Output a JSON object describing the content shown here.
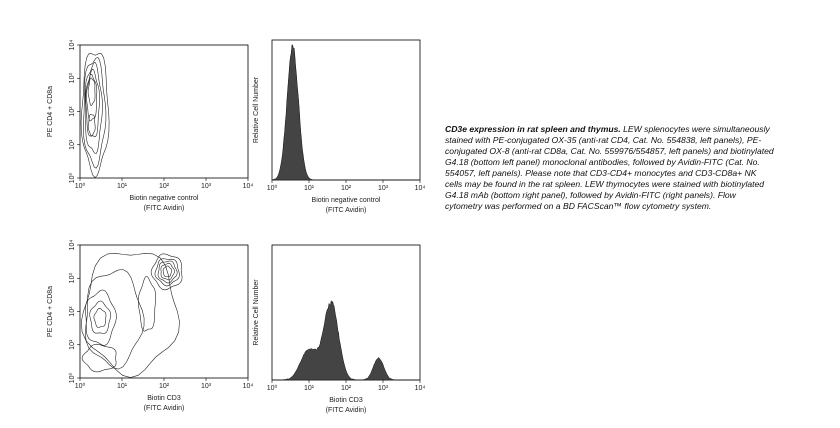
{
  "panels": [
    {
      "kind": "contour",
      "y_label": "PE CD4 + CD8a",
      "x_label": [
        "Biotin negative control",
        "(FITC Avidin)"
      ],
      "x_ticks": [
        "10⁰",
        "10¹",
        "10²",
        "10³",
        "10⁴"
      ],
      "y_ticks": [
        "10⁰",
        "10¹",
        "10²",
        "10³",
        "10⁴"
      ]
    },
    {
      "kind": "histogram",
      "y_label": "Relative Cell Number",
      "x_label": [
        "Biotin negative control",
        "(FITC Avidin)"
      ],
      "x_ticks": [
        "10⁰",
        "10¹",
        "10²",
        "10³",
        "10⁴"
      ]
    },
    {
      "kind": "contour",
      "y_label": "PE CD4 + CD8a",
      "x_label": [
        "Biotin CD3",
        "(FITC Avidin)"
      ],
      "x_ticks": [
        "10⁰",
        "10¹",
        "10²",
        "10³",
        "10⁴"
      ],
      "y_ticks": [
        "10⁰",
        "10¹",
        "10²",
        "10³",
        "10⁴"
      ]
    },
    {
      "kind": "histogram",
      "y_label": "Relative Cell Number",
      "x_label": [
        "Biotin CD3",
        "(FITC Avidin)"
      ],
      "x_ticks": [
        "10⁰",
        "10¹",
        "10²",
        "10³",
        "10⁴"
      ]
    }
  ],
  "caption": {
    "title": "CD3e expression in rat spleen and thymus.",
    "text": "LEW splenocytes were simultaneously stained with PE-conjugated OX-35 (anti-rat CD4, Cat. No. 554838, left panels), PE-conjugated OX-8 (anti-rat CD8a, Cat. No. 559976/554857, left panels) and biotinylated G4.18 (bottom left panel) monoclonal antibodies, followed by Avidin-FITC (Cat. No. 554057, left panels). Please note that CD3-CD4+ monocytes and CD3-CD8a+ NK cells may be found in the rat spleen. LEW thymocytes were stained with biotinylated G4.18 mAb (bottom right panel), followed by Avidin-FITC (right panels). Flow cytometry was performed on a BD FACScan™ flow cytometry system."
  }
}
